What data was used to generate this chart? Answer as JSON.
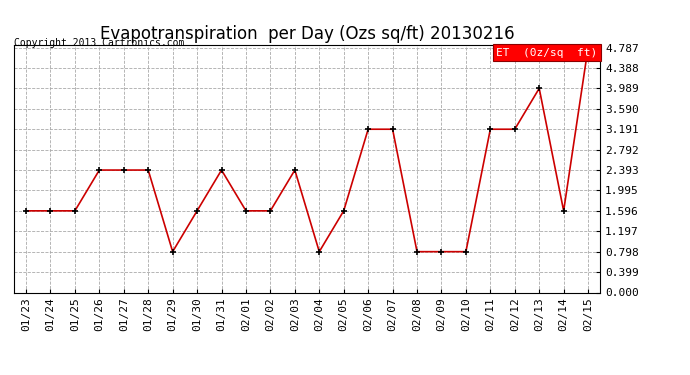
{
  "title": "Evapotranspiration  per Day (Ozs sq/ft) 20130216",
  "copyright": "Copyright 2013 Cartronics.com",
  "legend_label": "ET  (0z/sq  ft)",
  "x_labels": [
    "01/23",
    "01/24",
    "01/25",
    "01/26",
    "01/27",
    "01/28",
    "01/29",
    "01/30",
    "01/31",
    "02/01",
    "02/02",
    "02/03",
    "02/04",
    "02/05",
    "02/06",
    "02/07",
    "02/08",
    "02/09",
    "02/10",
    "02/11",
    "02/12",
    "02/13",
    "02/14",
    "02/15"
  ],
  "y_values": [
    1.596,
    1.596,
    1.596,
    2.393,
    2.393,
    2.393,
    0.798,
    1.596,
    2.393,
    1.596,
    1.596,
    2.393,
    0.798,
    1.596,
    3.191,
    3.191,
    0.798,
    0.798,
    0.798,
    3.191,
    3.191,
    3.989,
    1.596,
    4.787
  ],
  "line_color": "#cc0000",
  "marker_color": "#000000",
  "bg_color": "#ffffff",
  "grid_color": "#aaaaaa",
  "ylim_min": 0.0,
  "ylim_max": 4.787,
  "yticks": [
    0.0,
    0.399,
    0.798,
    1.197,
    1.596,
    1.995,
    2.393,
    2.792,
    3.191,
    3.59,
    3.989,
    4.388,
    4.787
  ],
  "title_fontsize": 12,
  "copyright_fontsize": 7,
  "legend_fontsize": 8,
  "tick_fontsize": 8,
  "linewidth": 1.2,
  "markersize": 5
}
